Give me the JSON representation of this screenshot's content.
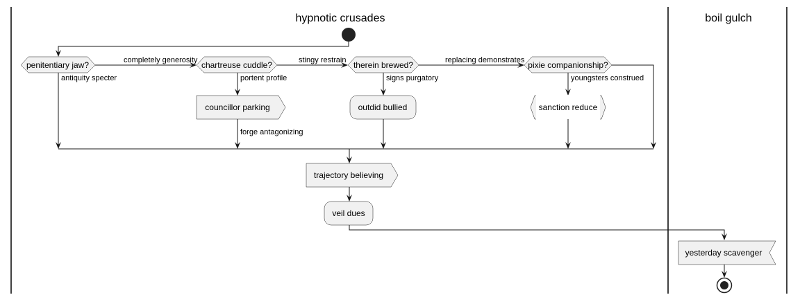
{
  "swimlanes": {
    "left_title": "hypnotic crusades",
    "right_title": "boil gulch"
  },
  "decisions": {
    "d1": "penitentiary jaw?",
    "d2": "chartreuse cuddle?",
    "d3": "therein brewed?",
    "d4": "pixie companionship?"
  },
  "edges": {
    "d1_else": "completely generosity",
    "d1_yes": "antiquity specter",
    "d2_else": "stingy restrain",
    "d2_yes": "portent profile",
    "d3_else": "replacing demonstrates",
    "d3_yes": "signs purgatory",
    "d4_yes": "youngsters construed",
    "after_councillor": "forge antagonizing"
  },
  "nodes": {
    "councillor": "councillor parking",
    "outdid": "outdid bullied",
    "sanction": "sanction reduce",
    "trajectory": "trajectory believing",
    "veil": "veil dues",
    "yesterday": "yesterday scavenger"
  }
}
